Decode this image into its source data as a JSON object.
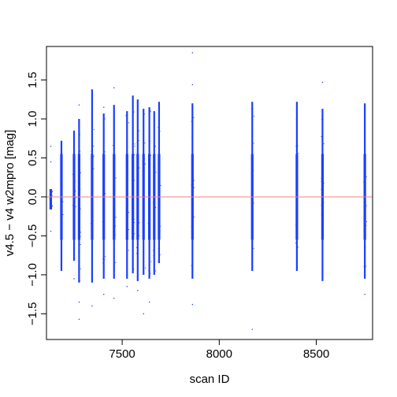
{
  "chart_data": {
    "type": "scatter",
    "title": "",
    "xlabel": "scan ID",
    "ylabel": "v4.5 − v4 w2mpro [mag]",
    "xlim": [
      7110,
      8790
    ],
    "ylim": [
      -1.83,
      1.93
    ],
    "x_ticks": [
      7500,
      8000,
      8500
    ],
    "x_tick_labels": [
      "7500",
      "8000",
      "8500"
    ],
    "y_ticks": [
      -1.5,
      -1.0,
      -0.5,
      0.0,
      0.5,
      1.0,
      1.5
    ],
    "y_tick_labels": [
      "−1.5",
      "−1.0",
      "−0.5",
      "0.0",
      "0.5",
      "1.0",
      "1.5"
    ],
    "reference_line": {
      "y": 0.0,
      "color": "#f08080"
    },
    "point_color": "#1a3fff",
    "columns": [
      {
        "x": 7132,
        "ymin": -0.16,
        "ymax": 0.1,
        "outliers": [
          0.65,
          0.45,
          -0.44
        ]
      },
      {
        "x": 7187,
        "ymin": -0.95,
        "ymax": 0.72,
        "outliers": []
      },
      {
        "x": 7252,
        "ymin": -0.82,
        "ymax": 0.85,
        "outliers": [
          -1.05
        ]
      },
      {
        "x": 7278,
        "ymin": -1.1,
        "ymax": 1.0,
        "outliers": [
          1.18,
          -1.35,
          -1.57
        ]
      },
      {
        "x": 7345,
        "ymin": -1.1,
        "ymax": 1.38,
        "outliers": [
          -1.4
        ]
      },
      {
        "x": 7405,
        "ymin": -1.05,
        "ymax": 1.07,
        "outliers": [
          1.15,
          -1.25
        ]
      },
      {
        "x": 7458,
        "ymin": -1.05,
        "ymax": 1.18,
        "outliers": [
          1.4,
          -1.3
        ]
      },
      {
        "x": 7525,
        "ymin": -1.05,
        "ymax": 1.1,
        "outliers": [
          -1.15
        ]
      },
      {
        "x": 7555,
        "ymin": -0.98,
        "ymax": 1.3,
        "outliers": []
      },
      {
        "x": 7580,
        "ymin": -1.08,
        "ymax": 1.25,
        "outliers": [
          -1.2
        ]
      },
      {
        "x": 7610,
        "ymin": -1.0,
        "ymax": 1.13,
        "outliers": [
          -1.5
        ]
      },
      {
        "x": 7640,
        "ymin": -1.05,
        "ymax": 1.15,
        "outliers": [
          -1.35
        ]
      },
      {
        "x": 7665,
        "ymin": -1.0,
        "ymax": 1.1,
        "outliers": []
      },
      {
        "x": 7690,
        "ymin": -0.85,
        "ymax": 1.22,
        "outliers": []
      },
      {
        "x": 7862,
        "ymin": -1.05,
        "ymax": 1.2,
        "outliers": [
          1.85,
          1.44,
          -1.38
        ]
      },
      {
        "x": 8170,
        "ymin": -0.95,
        "ymax": 1.22,
        "outliers": [
          -1.7
        ]
      },
      {
        "x": 8400,
        "ymin": -0.95,
        "ymax": 1.22,
        "outliers": []
      },
      {
        "x": 8532,
        "ymin": -1.08,
        "ymax": 1.13,
        "outliers": [
          1.47
        ]
      },
      {
        "x": 8750,
        "ymin": -1.05,
        "ymax": 1.2,
        "outliers": [
          -1.25
        ]
      }
    ]
  }
}
